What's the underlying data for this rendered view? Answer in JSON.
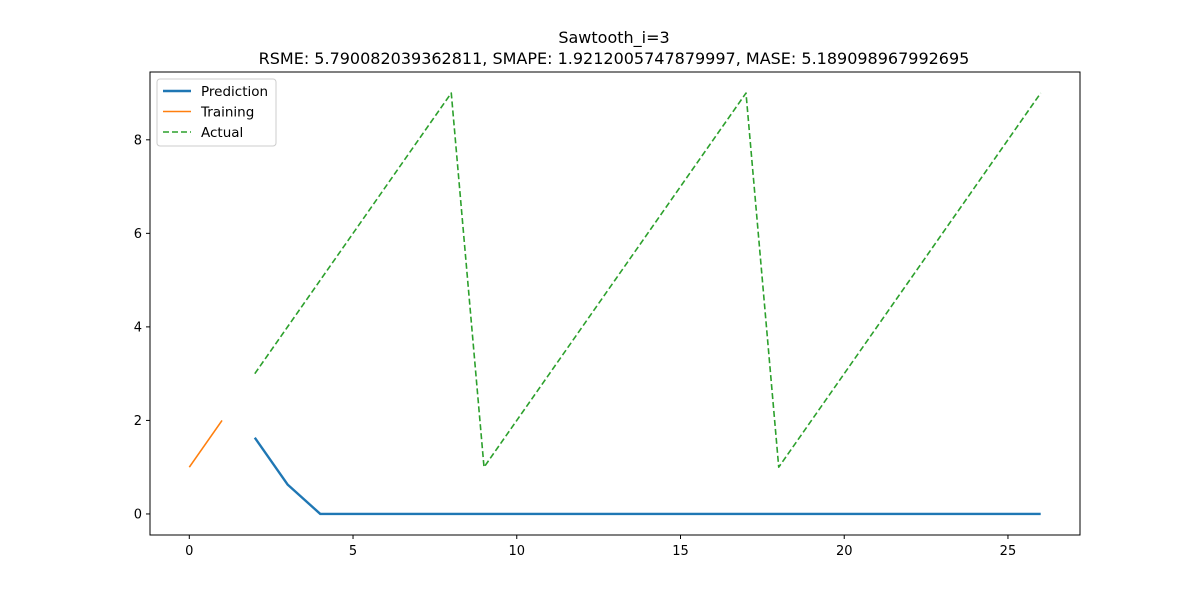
{
  "chart_data": {
    "type": "line",
    "title": "Sawtooth_i=3",
    "subtitle": "RSME: 5.790082039362811, SMAPE: 1.9212005747879997, MASE: 5.189098967992695",
    "xlabel": "",
    "ylabel": "",
    "xlim": [
      -1.2,
      27.2
    ],
    "ylim": [
      -0.45,
      9.45
    ],
    "xticks": [
      0,
      5,
      10,
      15,
      20,
      25
    ],
    "yticks": [
      0,
      2,
      4,
      6,
      8
    ],
    "grid": false,
    "legend_position": "upper-left",
    "series": [
      {
        "name": "Prediction",
        "color": "#1f77b4",
        "style": "solid",
        "x": [
          2,
          3,
          4,
          5,
          6,
          7,
          8,
          9,
          10,
          11,
          12,
          13,
          14,
          15,
          16,
          17,
          18,
          19,
          20,
          21,
          22,
          23,
          24,
          25,
          26
        ],
        "y": [
          1.63,
          0.63,
          0,
          0,
          0,
          0,
          0,
          0,
          0,
          0,
          0,
          0,
          0,
          0,
          0,
          0,
          0,
          0,
          0,
          0,
          0,
          0,
          0,
          0,
          0
        ]
      },
      {
        "name": "Training",
        "color": "#ff7f0e",
        "style": "solid",
        "x": [
          0,
          1
        ],
        "y": [
          1,
          2
        ]
      },
      {
        "name": "Actual",
        "color": "#2ca02c",
        "style": "dashed",
        "x": [
          2,
          3,
          4,
          5,
          6,
          7,
          8,
          9,
          10,
          11,
          12,
          13,
          14,
          15,
          16,
          17,
          18,
          19,
          20,
          21,
          22,
          23,
          24,
          25,
          26
        ],
        "y": [
          3,
          4,
          5,
          6,
          7,
          8,
          9,
          1,
          2,
          3,
          4,
          5,
          6,
          7,
          8,
          9,
          1,
          2,
          3,
          4,
          5,
          6,
          7,
          8,
          9
        ]
      }
    ]
  }
}
